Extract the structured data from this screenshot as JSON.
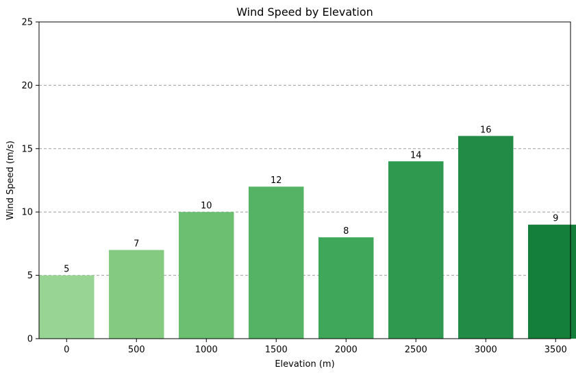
{
  "chart_data": {
    "type": "bar",
    "title": "Wind Speed by Elevation",
    "xlabel": "Elevation (m)",
    "ylabel": "Wind Speed (m/s)",
    "categories": [
      "0",
      "500",
      "1000",
      "1500",
      "2000",
      "2500",
      "3000",
      "3500"
    ],
    "values": [
      5,
      7,
      10,
      12,
      8,
      14,
      16,
      9
    ],
    "ylim": [
      0,
      25
    ],
    "yticks": [
      0,
      5,
      10,
      15,
      20,
      25
    ],
    "grid": "y-dashed",
    "data_labels": true,
    "bar_colors": [
      "#98d493",
      "#84ca81",
      "#6cbf71",
      "#55b365",
      "#3fa75a",
      "#2f9a4f",
      "#228c47",
      "#147e3b"
    ],
    "grid_color": "#9e9e9e"
  }
}
